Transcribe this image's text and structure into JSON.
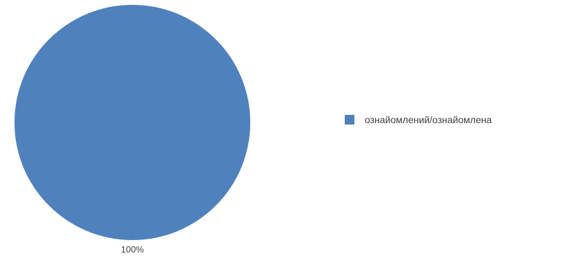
{
  "chart_data": {
    "type": "pie",
    "categories": [
      "ознайомлений/ознайомлена"
    ],
    "values": [
      100
    ],
    "data_labels": [
      "100%"
    ],
    "colors": [
      "#4f81bd"
    ],
    "legend_position": "right",
    "title": ""
  }
}
